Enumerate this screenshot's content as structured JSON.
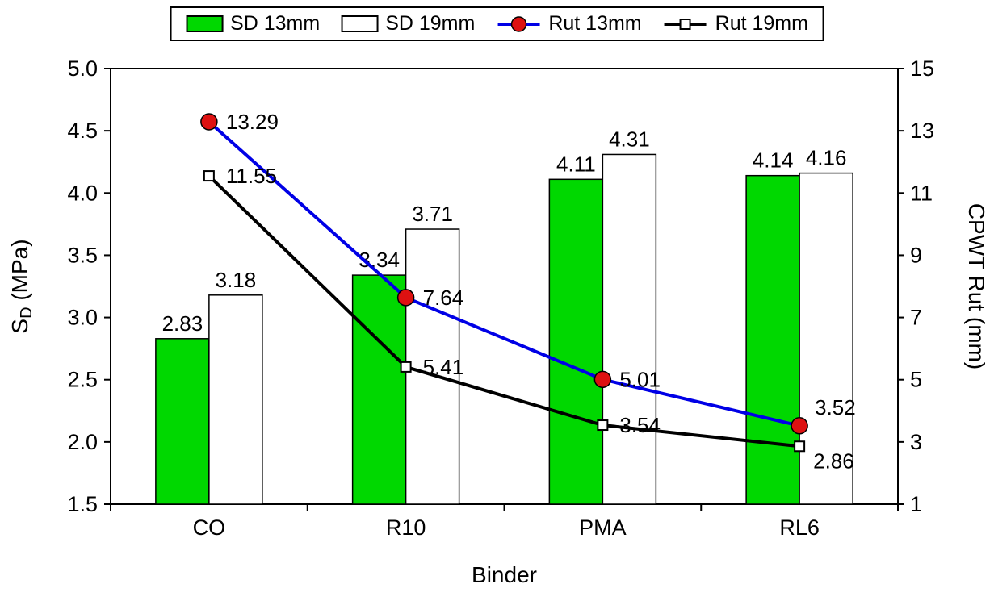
{
  "chart_data": {
    "type": "combo",
    "categories": [
      "CO",
      "R10",
      "PMA",
      "RL6"
    ],
    "series": [
      {
        "name": "SD 13mm",
        "type": "bar",
        "axis": "left",
        "color": "#00d800",
        "values": [
          2.83,
          3.34,
          4.11,
          4.14
        ]
      },
      {
        "name": "SD 19mm",
        "type": "bar",
        "axis": "left",
        "color": "#ffffff",
        "values": [
          3.18,
          3.71,
          4.31,
          4.16
        ]
      },
      {
        "name": "Rut 13mm",
        "type": "line",
        "axis": "right",
        "color": "#0000e6",
        "marker": "circle",
        "marker_color": "#dd1111",
        "values": [
          13.29,
          7.64,
          5.01,
          3.52
        ]
      },
      {
        "name": "Rut 19mm",
        "type": "line",
        "axis": "right",
        "color": "#000000",
        "marker": "square",
        "marker_color": "#ffffff",
        "values": [
          11.55,
          5.41,
          3.54,
          2.86
        ]
      }
    ],
    "xlabel": "Binder",
    "ylabel_left": "SD (MPa)",
    "ylabel_left_parts": {
      "prefix": "S",
      "sub": "D",
      "suffix": " (MPa)"
    },
    "ylabel_right": "CPWT Rut (mm)",
    "left_axis": {
      "min": 1.5,
      "max": 5.0,
      "step": 0.5,
      "ticks": [
        "5.0",
        "4.5",
        "4.0",
        "3.5",
        "3.0",
        "2.5",
        "2.0",
        "1.5"
      ]
    },
    "right_axis": {
      "min": 1,
      "max": 15,
      "step": 2,
      "ticks": [
        "15",
        "13",
        "11",
        "9",
        "7",
        "5",
        "3",
        "1"
      ]
    },
    "grid": false,
    "legend_position": "top"
  }
}
